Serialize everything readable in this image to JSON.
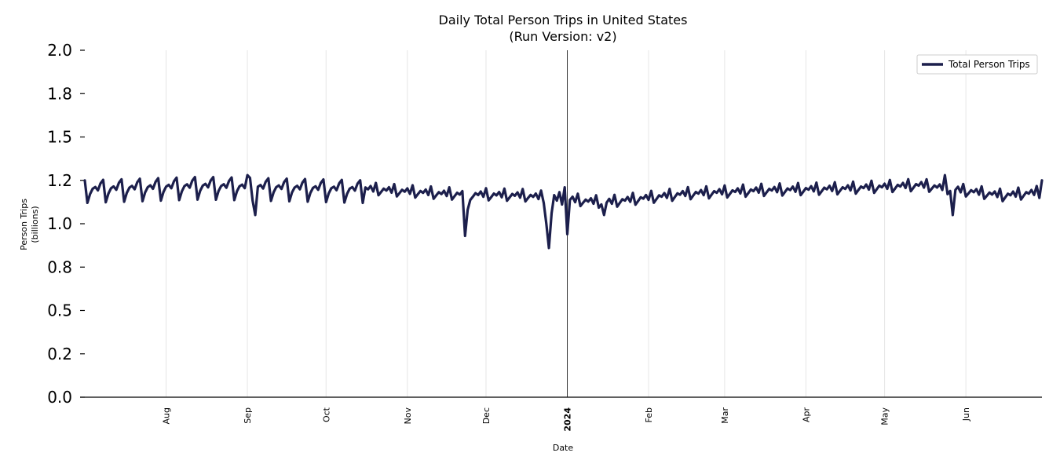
{
  "chart_data": {
    "type": "line",
    "title": "Daily Total Person Trips in United States",
    "subtitle": "(Run Version: v2)",
    "xlabel": "Date",
    "ylabel": "Person Trips",
    "ylabel_unit": "(billions)",
    "ylim": [
      0,
      2.0
    ],
    "y_ticks": [
      {
        "value": 0.0,
        "label": "0.0"
      },
      {
        "value": 0.25,
        "label": "0.2"
      },
      {
        "value": 0.5,
        "label": "0.5"
      },
      {
        "value": 0.75,
        "label": "0.8"
      },
      {
        "value": 1.0,
        "label": "1.0"
      },
      {
        "value": 1.25,
        "label": "1.2"
      },
      {
        "value": 1.5,
        "label": "1.5"
      },
      {
        "value": 1.75,
        "label": "1.8"
      },
      {
        "value": 2.0,
        "label": "2.0"
      }
    ],
    "x_range": [
      "2023-07-01",
      "2024-06-30"
    ],
    "x_ticks": [
      {
        "date": "2023-08-01",
        "label": "Aug",
        "bold": false
      },
      {
        "date": "2023-09-01",
        "label": "Sep",
        "bold": false
      },
      {
        "date": "2023-10-01",
        "label": "Oct",
        "bold": false
      },
      {
        "date": "2023-11-01",
        "label": "Nov",
        "bold": false
      },
      {
        "date": "2023-12-01",
        "label": "Dec",
        "bold": false
      },
      {
        "date": "2024-01-01",
        "label": "2024",
        "bold": true
      },
      {
        "date": "2024-02-01",
        "label": "Feb",
        "bold": false
      },
      {
        "date": "2024-03-01",
        "label": "Mar",
        "bold": false
      },
      {
        "date": "2024-04-01",
        "label": "Apr",
        "bold": false
      },
      {
        "date": "2024-05-01",
        "label": "May",
        "bold": false
      },
      {
        "date": "2024-06-01",
        "label": "Jun",
        "bold": false
      }
    ],
    "grid": "vertical",
    "legend_position": "top-right",
    "series": [
      {
        "name": "Total Person Trips",
        "color": "#1c1f4c",
        "start_date": "2023-07-01",
        "weekly_pattern_a": [
          1.25,
          1.12,
          1.17,
          1.2,
          1.21,
          1.19,
          1.23
        ],
        "weekly_pattern_b": [
          1.17,
          1.19,
          1.21,
          1.2,
          1.22,
          1.19,
          1.24
        ],
        "pattern_a_until": "2023-10-15",
        "trend_anchors": [
          {
            "date": "2023-07-01",
            "offset": 0.0
          },
          {
            "date": "2023-08-15",
            "offset": 0.02
          },
          {
            "date": "2023-09-15",
            "offset": 0.01
          },
          {
            "date": "2023-10-15",
            "offset": 0.0
          },
          {
            "date": "2023-11-15",
            "offset": -0.03
          },
          {
            "date": "2023-12-15",
            "offset": -0.04
          },
          {
            "date": "2024-01-15",
            "offset": -0.08
          },
          {
            "date": "2024-02-15",
            "offset": -0.03
          },
          {
            "date": "2024-03-15",
            "offset": -0.01
          },
          {
            "date": "2024-04-15",
            "offset": 0.0
          },
          {
            "date": "2024-05-15",
            "offset": 0.02
          },
          {
            "date": "2024-06-15",
            "offset": -0.04
          },
          {
            "date": "2024-06-30",
            "offset": -0.02
          }
        ],
        "special_days": [
          {
            "date": "2023-09-04",
            "value": 1.05
          },
          {
            "date": "2023-09-01",
            "value": 1.28
          },
          {
            "date": "2023-11-23",
            "value": 0.93
          },
          {
            "date": "2023-11-24",
            "value": 1.08
          },
          {
            "date": "2023-12-24",
            "value": 1.0
          },
          {
            "date": "2023-12-25",
            "value": 0.86
          },
          {
            "date": "2023-12-26",
            "value": 1.06
          },
          {
            "date": "2023-12-31",
            "value": 1.21
          },
          {
            "date": "2024-01-01",
            "value": 0.94
          },
          {
            "date": "2024-01-15",
            "value": 1.05
          },
          {
            "date": "2024-05-24",
            "value": 1.28
          },
          {
            "date": "2024-05-27",
            "value": 1.05
          },
          {
            "date": "2024-06-30",
            "value": 1.25
          }
        ]
      }
    ]
  }
}
